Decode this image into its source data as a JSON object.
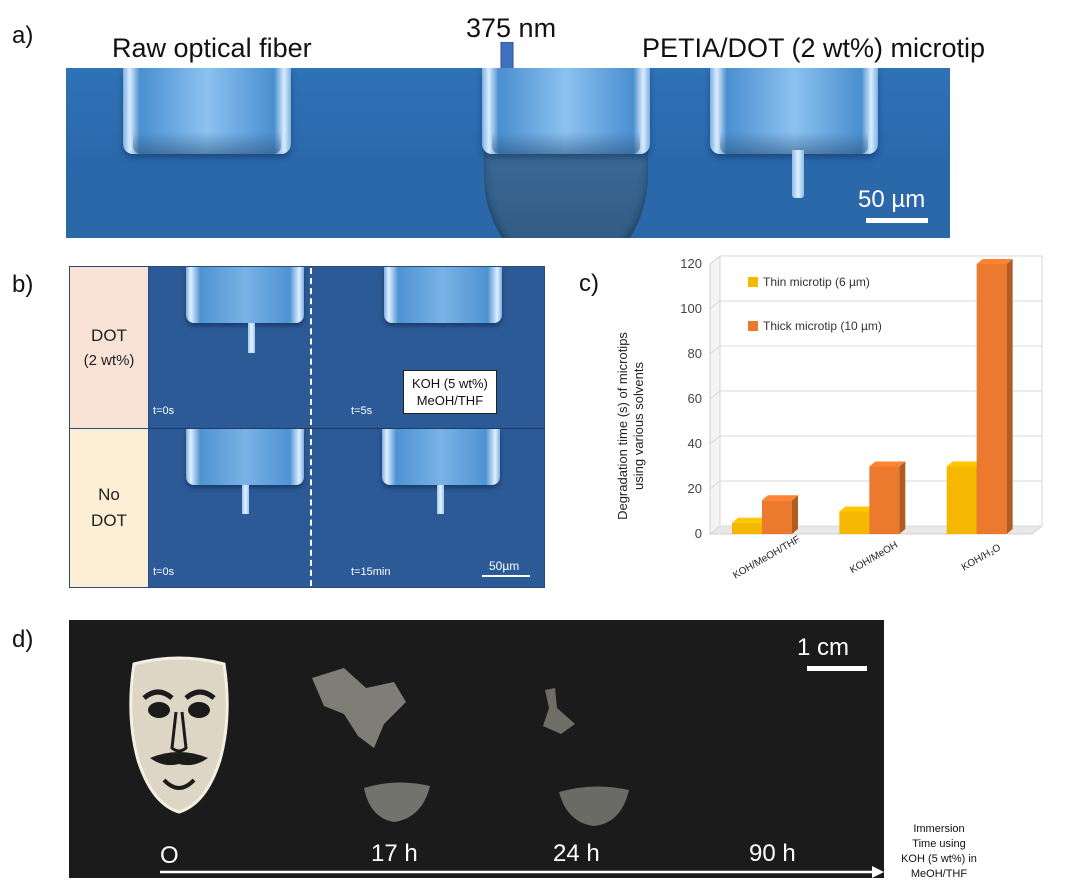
{
  "panels": {
    "a": {
      "label": "a)",
      "left_title": "Raw optical fiber",
      "middle_title": "375 nm",
      "right_title": "PETIA/DOT (2 wt%) microtip",
      "scale": "50 µm"
    },
    "b": {
      "label": "b)",
      "row1_label_line1": "DOT",
      "row1_label_line2": "(2 wt%)",
      "row2_label_line1": "No",
      "row2_label_line2": "DOT",
      "t_row1_left": "t=0s",
      "t_row1_right": "t=5s",
      "t_row2_left": "t=0s",
      "t_row2_right": "t=15min",
      "box_line1": "KOH (5 wt%)",
      "box_line2": "MeOH/THF",
      "scale": "50µm",
      "colors": {
        "row1_bg": "#f9e2d6",
        "row2_bg": "#fcefd6"
      }
    },
    "c": {
      "label": "c)"
    },
    "d": {
      "label": "d)",
      "scale": "1 cm",
      "times": [
        "O",
        "17 h",
        "24 h",
        "90 h"
      ],
      "caption_lines": [
        "Immersion",
        "Time using",
        "KOH (5 wt%) in",
        "MeOH/THF"
      ]
    }
  },
  "chart_data": {
    "type": "bar",
    "style": "3d-clustered",
    "categories": [
      "KOH/MeOH/THF",
      "KOH/MeOH",
      "KOH/H₂O"
    ],
    "series": [
      {
        "name": "Thin microtip  (6 µm)",
        "values": [
          5,
          10,
          30
        ],
        "color": "#f5b800"
      },
      {
        "name": "Thick microtip  (10 µm)",
        "values": [
          15,
          30,
          120
        ],
        "color": "#ec7a2e"
      }
    ],
    "ylabel_line1": "Degradation time (s) of microtips",
    "ylabel_line2": "using various solvents",
    "yticks": [
      0,
      20,
      40,
      60,
      80,
      100,
      120
    ],
    "ylim": [
      0,
      120
    ],
    "grid": true,
    "legend_position": "top-left"
  }
}
